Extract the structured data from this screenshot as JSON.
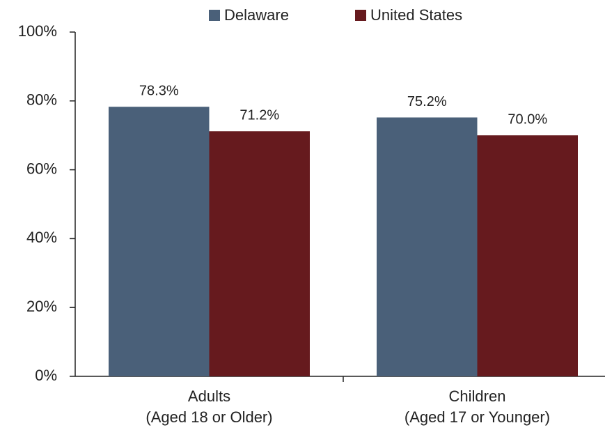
{
  "chart_data": {
    "type": "bar",
    "categories": [
      [
        "Adults",
        "(Aged 18 or Older)"
      ],
      [
        "Children",
        "(Aged 17 or Younger)"
      ]
    ],
    "series": [
      {
        "name": "Delaware",
        "color": "#4a6079",
        "values": [
          78.3,
          75.2
        ],
        "value_labels": [
          "78.3%",
          "75.2%"
        ]
      },
      {
        "name": "United States",
        "color": "#661a1e",
        "values": [
          71.2,
          70.0
        ],
        "value_labels": [
          "71.2%",
          "70.0%"
        ]
      }
    ],
    "ylim": [
      0,
      100
    ],
    "yticks": [
      {
        "value": 0,
        "label": "0%"
      },
      {
        "value": 20,
        "label": "20%"
      },
      {
        "value": 40,
        "label": "40%"
      },
      {
        "value": 60,
        "label": "60%"
      },
      {
        "value": 80,
        "label": "80%"
      },
      {
        "value": 100,
        "label": "100%"
      }
    ],
    "legend": "top"
  }
}
